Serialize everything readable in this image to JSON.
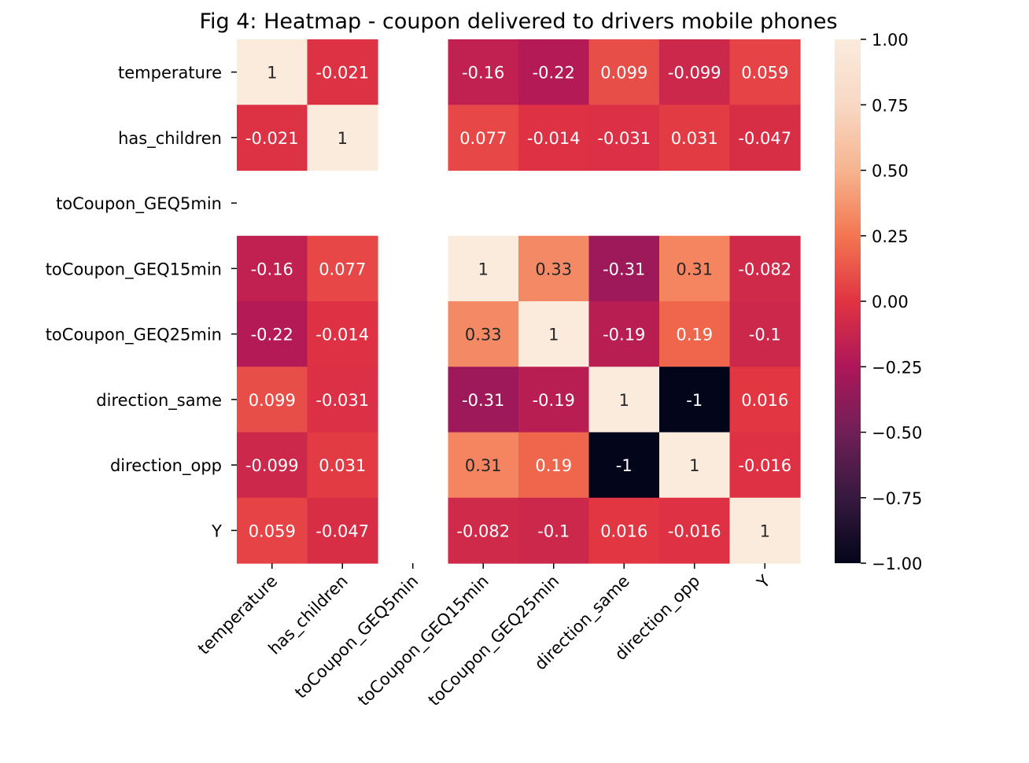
{
  "chart_data": {
    "type": "heatmap",
    "title": "Fig 4: Heatmap - coupon delivered to drivers mobile phones",
    "xlabel": "",
    "ylabel": "",
    "row_labels": [
      "temperature",
      "has_children",
      "toCoupon_GEQ5min",
      "toCoupon_GEQ15min",
      "toCoupon_GEQ25min",
      "direction_same",
      "direction_opp",
      "Y"
    ],
    "col_labels": [
      "temperature",
      "has_children",
      "toCoupon_GEQ5min",
      "toCoupon_GEQ15min",
      "toCoupon_GEQ25min",
      "direction_same",
      "direction_opp",
      "Y"
    ],
    "values": [
      [
        1,
        -0.021,
        null,
        -0.16,
        -0.22,
        0.099,
        -0.099,
        0.059
      ],
      [
        -0.021,
        1,
        null,
        0.077,
        -0.014,
        -0.031,
        0.031,
        -0.047
      ],
      [
        null,
        null,
        null,
        null,
        null,
        null,
        null,
        null
      ],
      [
        -0.16,
        0.077,
        null,
        1,
        0.33,
        -0.31,
        0.31,
        -0.082
      ],
      [
        -0.22,
        -0.014,
        null,
        0.33,
        1,
        -0.19,
        0.19,
        -0.1
      ],
      [
        0.099,
        -0.031,
        null,
        -0.31,
        -0.19,
        1,
        -1,
        0.016
      ],
      [
        -0.099,
        0.031,
        null,
        0.31,
        0.19,
        -1,
        1,
        -0.016
      ],
      [
        0.059,
        -0.047,
        null,
        -0.082,
        -0.1,
        0.016,
        -0.016,
        1
      ]
    ],
    "vmin": -1,
    "vmax": 1,
    "colormap": "rocket",
    "colorbar_ticks": [
      "1.00",
      "0.75",
      "0.50",
      "0.25",
      "0.00",
      "−0.25",
      "−0.50",
      "−0.75",
      "−1.00"
    ],
    "colorbar_tick_values": [
      1,
      0.75,
      0.5,
      0.25,
      0,
      -0.25,
      -0.5,
      -0.75,
      -1
    ],
    "grid": false,
    "legend": "colorbar-right"
  }
}
